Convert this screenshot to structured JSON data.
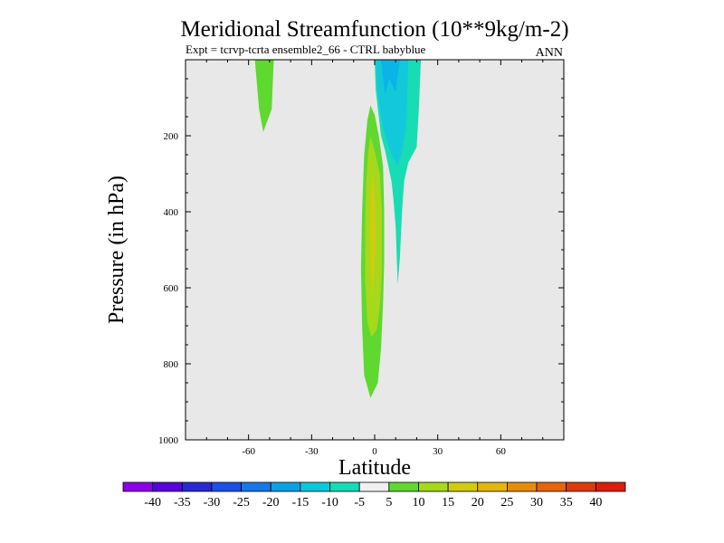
{
  "chart_data": {
    "type": "contour",
    "title": "Meridional Streamfunction (10**9kg/m-2)",
    "subtitle": "Expt = tcrvp-tcrta  ensemble2_66 - CTRL babyblue",
    "season": "ANN",
    "xlabel": "Latitude",
    "ylabel": "Pressure (in hPa)",
    "xlim": [
      -90,
      90
    ],
    "ylim": [
      0,
      1000
    ],
    "y_inverted": true,
    "x_ticks": [
      -60,
      -30,
      0,
      30,
      60
    ],
    "x_tick_labels": [
      "-60",
      "-30",
      "0",
      "30",
      "60"
    ],
    "y_ticks": [
      200,
      400,
      600,
      800,
      1000
    ],
    "y_tick_labels": [
      "200",
      "400",
      "600",
      "800",
      "1000"
    ],
    "background_color": "#e8e8e8",
    "contour_regions": [
      {
        "name": "nh-positive-cell-50s",
        "level": "5 to 10",
        "color": "#5fd830",
        "points": [
          [
            -57,
            0
          ],
          [
            -48,
            0
          ],
          [
            -49,
            130
          ],
          [
            -53,
            190
          ],
          [
            -55,
            130
          ]
        ]
      },
      {
        "name": "equatorial-positive-outer",
        "level": "5 to 10",
        "color": "#5fd830",
        "points": [
          [
            -2,
            120
          ],
          [
            0,
            145
          ],
          [
            2,
            200
          ],
          [
            4,
            280
          ],
          [
            4.5,
            400
          ],
          [
            4.5,
            530
          ],
          [
            4,
            640
          ],
          [
            3,
            760
          ],
          [
            1.5,
            850
          ],
          [
            -2,
            890
          ],
          [
            -5,
            830
          ],
          [
            -6,
            700
          ],
          [
            -6.5,
            550
          ],
          [
            -6,
            400
          ],
          [
            -5,
            250
          ],
          [
            -3.5,
            160
          ]
        ]
      },
      {
        "name": "equatorial-positive-inner",
        "level": "10 to 15",
        "color": "#a6d81c",
        "points": [
          [
            -2,
            200
          ],
          [
            0,
            240
          ],
          [
            2.5,
            300
          ],
          [
            3.5,
            400
          ],
          [
            3.5,
            560
          ],
          [
            2.5,
            650
          ],
          [
            1,
            710
          ],
          [
            -1.5,
            730
          ],
          [
            -3.5,
            690
          ],
          [
            -4.5,
            580
          ],
          [
            -4.5,
            430
          ],
          [
            -4,
            320
          ],
          [
            -3,
            240
          ]
        ]
      },
      {
        "name": "equatorial-positive-core",
        "level": "15 to 20",
        "color": "#d2cc10",
        "points": [
          [
            -1,
            300
          ],
          [
            0,
            350
          ],
          [
            0.5,
            450
          ],
          [
            0,
            550
          ],
          [
            -1,
            620
          ],
          [
            -2,
            560
          ],
          [
            -2.2,
            450
          ],
          [
            -2,
            350
          ]
        ]
      },
      {
        "name": "equatorial-negative-outer",
        "level": "-10 to -5",
        "color": "#18dcb4",
        "points": [
          [
            0,
            0
          ],
          [
            22,
            0
          ],
          [
            21,
            130
          ],
          [
            20,
            230
          ],
          [
            16,
            270
          ],
          [
            14,
            320
          ],
          [
            13,
            400
          ],
          [
            12,
            520
          ],
          [
            11,
            590
          ],
          [
            10.5,
            520
          ],
          [
            10,
            440
          ],
          [
            9,
            370
          ],
          [
            8,
            320
          ],
          [
            5,
            240
          ],
          [
            3,
            200
          ],
          [
            2,
            150
          ],
          [
            0.5,
            80
          ]
        ]
      },
      {
        "name": "equatorial-negative-middle",
        "level": "-15 to -10",
        "color": "#14c8dc",
        "points": [
          [
            0.5,
            0
          ],
          [
            16,
            0
          ],
          [
            15.5,
            100
          ],
          [
            15,
            180
          ],
          [
            13,
            240
          ],
          [
            11,
            280
          ],
          [
            8,
            250
          ],
          [
            5,
            200
          ],
          [
            3,
            150
          ],
          [
            1.5,
            90
          ]
        ]
      },
      {
        "name": "equatorial-negative-core",
        "level": "-20 to -15",
        "color": "#0ab4e6",
        "points": [
          [
            3,
            0
          ],
          [
            12,
            0
          ],
          [
            11,
            40
          ],
          [
            10,
            85
          ],
          [
            7,
            50
          ],
          [
            5,
            90
          ],
          [
            4,
            50
          ]
        ]
      }
    ],
    "colorbar": {
      "labels": [
        "-40",
        "-35",
        "-30",
        "-25",
        "-20",
        "-15",
        "-10",
        "-5",
        "5",
        "10",
        "15",
        "20",
        "25",
        "30",
        "35",
        "40"
      ],
      "colors": [
        "#8c00e6",
        "#5a00dc",
        "#2828d2",
        "#1a50e6",
        "#1478e6",
        "#0aa0e6",
        "#0ac8dc",
        "#14dcb4",
        "#f0f0f0",
        "#5fd830",
        "#a6d81c",
        "#d2cc10",
        "#e6b40a",
        "#e68c0a",
        "#e6640a",
        "#dc3c0a",
        "#dc1e0a"
      ]
    }
  }
}
